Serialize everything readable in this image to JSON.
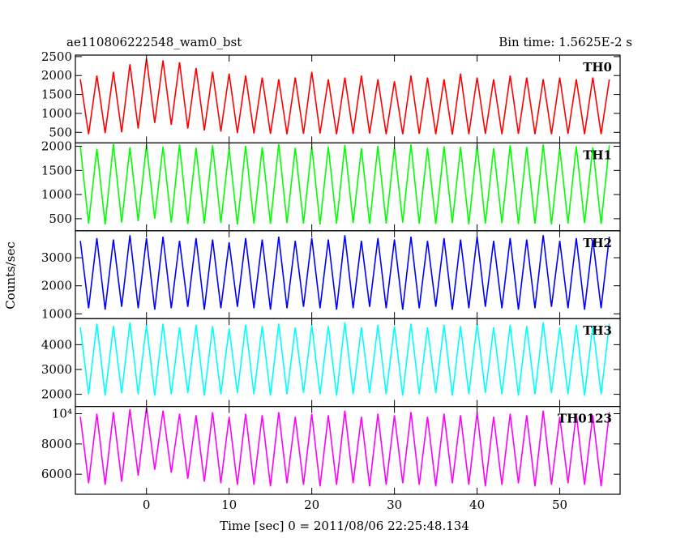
{
  "chart_data": {
    "type": "line",
    "title": "ae110806222548_wam0_bst",
    "subtitle": "Bin time: 1.5625E-2 s",
    "ylabel": "Counts/sec",
    "xlabel": "Time [sec] 0 = 2011/08/06 22:25:48.134",
    "xlim": [
      -8.6,
      57.3
    ],
    "xticks": [
      0,
      10,
      20,
      30,
      40,
      50
    ],
    "x": [
      -8,
      -7,
      -6,
      -5,
      -4,
      -3,
      -2,
      -1,
      0,
      1,
      2,
      3,
      4,
      5,
      6,
      7,
      8,
      9,
      10,
      11,
      12,
      13,
      14,
      15,
      16,
      17,
      18,
      19,
      20,
      21,
      22,
      23,
      24,
      25,
      26,
      27,
      28,
      29,
      30,
      31,
      32,
      33,
      34,
      35,
      36,
      37,
      38,
      39,
      40,
      41,
      42,
      43,
      44,
      45,
      46,
      47,
      48,
      49,
      50,
      51,
      52,
      53,
      54,
      55,
      56
    ],
    "series": [
      {
        "name": "TH0",
        "color": "#ff0000",
        "ylim": [
          220,
          2540
        ],
        "yticks": [
          500,
          1000,
          1500,
          2000,
          2500
        ],
        "values": [
          1900,
          450,
          2000,
          480,
          2100,
          500,
          2300,
          600,
          2450,
          750,
          2400,
          700,
          2350,
          600,
          2200,
          550,
          2100,
          520,
          2050,
          480,
          2000,
          470,
          1950,
          460,
          1900,
          450,
          1950,
          460,
          2100,
          470,
          1900,
          450,
          1950,
          460,
          2000,
          470,
          1900,
          450,
          1850,
          450,
          2000,
          460,
          1950,
          450,
          1900,
          440,
          2050,
          450,
          1950,
          460,
          1900,
          450,
          2000,
          460,
          1950,
          450,
          1900,
          450,
          1950,
          460,
          1900,
          450,
          1950,
          450,
          1900
        ]
      },
      {
        "name": "TH1",
        "color": "#00ff00",
        "ylim": [
          250,
          2070
        ],
        "yticks": [
          500,
          1000,
          1500,
          2000
        ],
        "values": [
          2000,
          400,
          1950,
          380,
          2050,
          420,
          1980,
          450,
          2030,
          500,
          1990,
          420,
          2040,
          390,
          1970,
          400,
          2020,
          410,
          1960,
          380,
          2010,
          400,
          1980,
          390,
          2050,
          410,
          1970,
          400,
          2000,
          380,
          1990,
          400,
          2030,
          410,
          1960,
          390,
          2010,
          400,
          1980,
          420,
          2040,
          400,
          1970,
          390,
          2000,
          410,
          1990,
          380,
          2030,
          400,
          1960,
          410,
          2020,
          390,
          1990,
          400,
          2040,
          380,
          1970,
          400,
          2000,
          410,
          1980,
          390,
          2020
        ]
      },
      {
        "name": "TH2",
        "color": "#0000ff",
        "ylim": [
          830,
          3960
        ],
        "yticks": [
          1000,
          2000,
          3000
        ],
        "values": [
          3600,
          1200,
          3700,
          1150,
          3650,
          1250,
          3800,
          1200,
          3700,
          1150,
          3750,
          1200,
          3600,
          1250,
          3700,
          1150,
          3650,
          1200,
          3550,
          1250,
          3700,
          1200,
          3650,
          1150,
          3750,
          1200,
          3600,
          1250,
          3700,
          1200,
          3650,
          1150,
          3800,
          1200,
          3600,
          1250,
          3700,
          1200,
          3650,
          1150,
          3750,
          1200,
          3600,
          1250,
          3700,
          1150,
          3650,
          1200,
          3750,
          1250,
          3600,
          1200,
          3700,
          1150,
          3650,
          1200,
          3800,
          1250,
          3600,
          1200,
          3700,
          1150,
          3650,
          1200,
          3750
        ]
      },
      {
        "name": "TH3",
        "color": "#00ffff",
        "ylim": [
          1510,
          5050
        ],
        "yticks": [
          2000,
          3000,
          4000
        ],
        "values": [
          4700,
          2000,
          4850,
          1950,
          4750,
          2050,
          4900,
          2000,
          4800,
          1950,
          4850,
          2000,
          4700,
          2050,
          4800,
          1950,
          4750,
          2000,
          4650,
          2050,
          4800,
          2000,
          4750,
          1950,
          4850,
          2000,
          4700,
          2050,
          4800,
          2000,
          4750,
          1950,
          4900,
          2000,
          4700,
          2050,
          4800,
          2000,
          4750,
          1950,
          4850,
          2000,
          4700,
          2050,
          4800,
          1950,
          4750,
          2000,
          4850,
          2050,
          4700,
          2000,
          4800,
          1950,
          4750,
          2000,
          4900,
          2050,
          4700,
          2000,
          4800,
          1950,
          4750,
          2000,
          4850
        ]
      },
      {
        "name": "TH0123",
        "color": "#ff00ff",
        "ylim": [
          4670,
          10480
        ],
        "yticks": [
          6000,
          8000,
          {
            "value": 10000,
            "label": "10⁴"
          }
        ],
        "values": [
          9800,
          5400,
          10000,
          5300,
          10100,
          5500,
          10300,
          5900,
          10400,
          6300,
          10200,
          6100,
          10000,
          5700,
          9900,
          5500,
          10100,
          5400,
          9800,
          5300,
          10000,
          5300,
          9900,
          5200,
          10100,
          5400,
          9800,
          5300,
          10000,
          5200,
          9900,
          5300,
          10200,
          5400,
          9800,
          5200,
          10000,
          5300,
          9900,
          5400,
          10100,
          5300,
          9800,
          5200,
          10000,
          5400,
          9900,
          5300,
          10100,
          5200,
          9800,
          5300,
          10000,
          5400,
          9900,
          5200,
          10200,
          5300,
          9800,
          5400,
          10000,
          5300,
          9900,
          5200,
          10100
        ]
      }
    ]
  }
}
